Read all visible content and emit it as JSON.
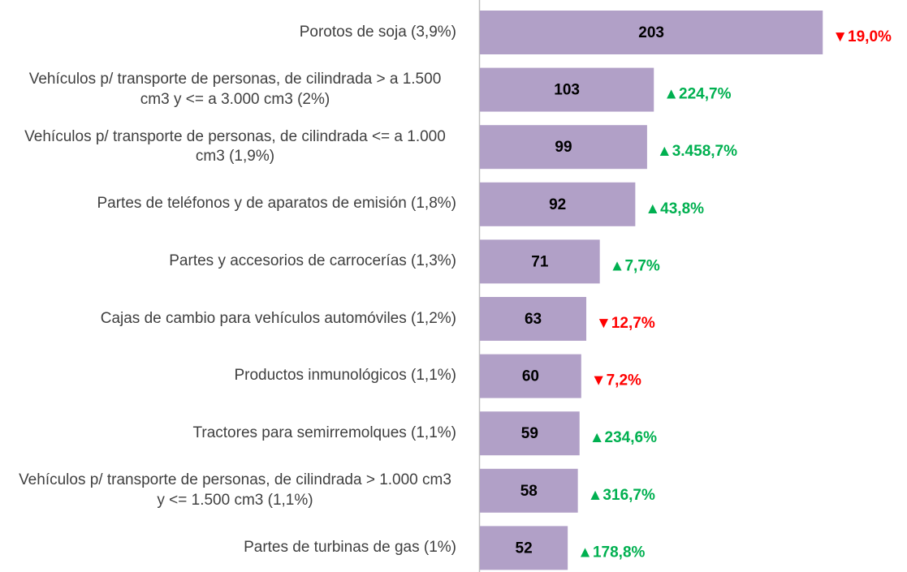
{
  "chart_data": {
    "type": "bar",
    "orientation": "horizontal",
    "categories": [
      "Porotos de soja  (3,9%)",
      "Vehículos p/ transporte de personas, de cilindrada > a 1.500 cm3 y <= a 3.000 cm3  (2%)",
      "Vehículos p/ transporte de personas, de cilindrada <= a 1.000 cm3  (1,9%)",
      "Partes de teléfonos y de aparatos de emisión (1,8%)",
      "Partes y accesorios de carrocerías (1,3%)",
      "Cajas de cambio para vehículos automóviles  (1,2%)",
      "Productos inmunológicos (1,1%)",
      "Tractores para semirremolques (1,1%)",
      "Vehículos p/ transporte de personas, de cilindrada > 1.000 cm3 y <= 1.500 cm3  (1,1%)",
      "Partes de turbinas de gas  (1%)"
    ],
    "values": [
      203,
      103,
      99,
      92,
      71,
      63,
      60,
      59,
      58,
      52
    ],
    "color": "#b1a0c7",
    "change_values": [
      -19.0,
      224.7,
      3458.7,
      43.8,
      7.7,
      -12.7,
      -7.2,
      234.6,
      316.7,
      178.8
    ],
    "change_labels": [
      "▼19,0%",
      "▲224,7%",
      "▲3.458,7%",
      "▲43,8%",
      "▲7,7%",
      "▼12,7%",
      "▼7,2%",
      "▲234,6%",
      "▲316,7%",
      "▲178,8%"
    ],
    "up_color": "#00b050",
    "down_color": "#ff0000"
  }
}
